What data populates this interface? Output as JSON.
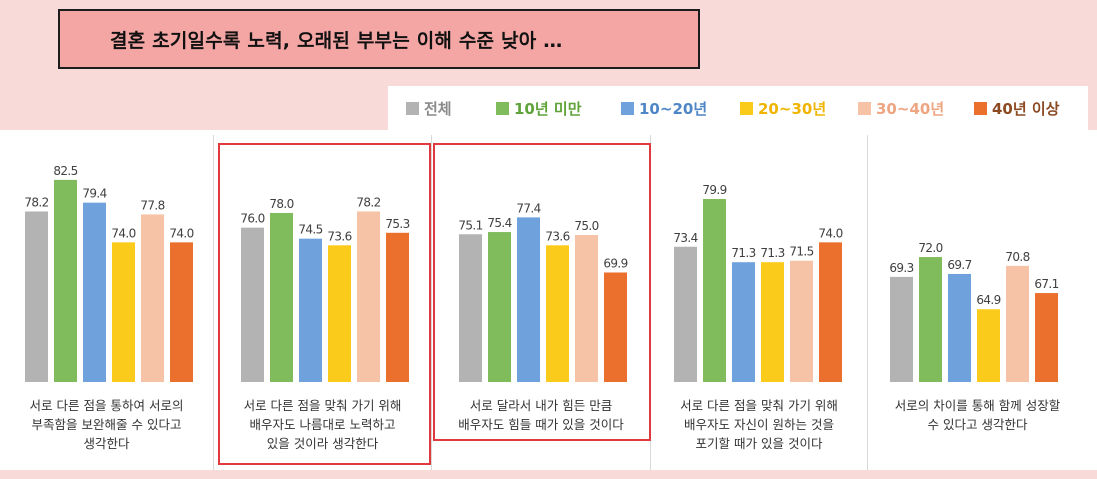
{
  "title": "결혼 초기일수록 노력, 오래된 부부는 이해 수준 낮아 …",
  "colors": {
    "전체": "#b3b3b3",
    "10년 미만": "#80bb5c",
    "10~20년": "#6fa2dc",
    "20~30년": "#fbcb1c",
    "30~40년": "#f7c3a6",
    "40년 이상": "#eb6f2d"
  },
  "chart_data": {
    "type": "bar",
    "series_names": [
      "전체",
      "10년 미만",
      "10~20년",
      "20~30년",
      "30~40년",
      "40년 이상"
    ],
    "groups": [
      {
        "caption": [
          "서로 다른 점을 통하여 서로의",
          "부족함을 보완해줄 수 있다고",
          "생각한다"
        ],
        "values": [
          78.2,
          82.5,
          79.4,
          74.0,
          77.8,
          74.0
        ],
        "labels": [
          "78.2",
          "82.5",
          "79.4",
          "74.0",
          "77.8",
          "74.0"
        ],
        "highlighted": false
      },
      {
        "caption": [
          "서로 다른 점을 맞춰 가기 위해",
          "배우자도 나름대로 노력하고",
          "있을 것이라 생각한다"
        ],
        "values": [
          76.0,
          78.0,
          74.5,
          73.6,
          78.2,
          75.3
        ],
        "labels": [
          "76.0",
          "78.0",
          "74.5",
          "73.6",
          "78.2",
          "75.3"
        ],
        "highlighted": true
      },
      {
        "caption": [
          "서로 달라서 내가 힘든 만큼",
          "배우자도 힘들 때가 있을 것이다"
        ],
        "values": [
          75.1,
          75.4,
          77.4,
          73.6,
          75.0,
          69.9
        ],
        "labels": [
          "75.1",
          "75.4",
          "77.4",
          "73.6",
          "75.0",
          "69.9"
        ],
        "highlighted": true
      },
      {
        "caption": [
          "서로 다른 점을 맞춰 가기 위해",
          "배우자도 자신이 원하는 것을",
          "포기할 때가 있을 것이다"
        ],
        "values": [
          73.4,
          79.9,
          71.3,
          71.3,
          71.5,
          74.0
        ],
        "labels": [
          "73.4",
          "79.9",
          "71.3",
          "71.3",
          "71.5",
          "74.0"
        ],
        "highlighted": false
      },
      {
        "caption": [
          "서로의 차이를 통해 함께 성장할",
          "수 있다고 생각한다"
        ],
        "values": [
          69.3,
          72.0,
          69.7,
          64.9,
          70.8,
          67.1
        ],
        "labels": [
          "69.3",
          "72.0",
          "69.7",
          "64.9",
          "70.8",
          "67.1"
        ],
        "highlighted": false
      }
    ]
  }
}
